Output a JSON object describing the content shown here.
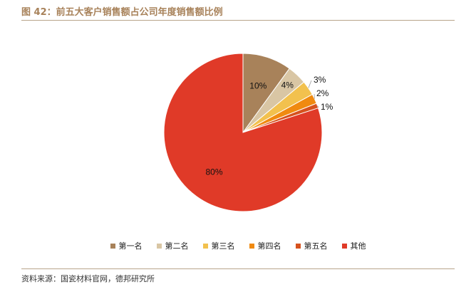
{
  "title": "图 42：前五大客户销售额占公司年度销售额比例",
  "source": "资料来源：国瓷材料官网，德邦研究所",
  "chart_data": {
    "type": "pie",
    "title": "",
    "slices": [
      {
        "label": "第一名",
        "value": 10,
        "display": "10%",
        "color": "#a8825a"
      },
      {
        "label": "第二名",
        "value": 4,
        "display": "4%",
        "color": "#d9c6a4"
      },
      {
        "label": "第三名",
        "value": 3,
        "display": "3%",
        "color": "#f2c14e"
      },
      {
        "label": "第四名",
        "value": 2,
        "display": "2%",
        "color": "#f08a10"
      },
      {
        "label": "第五名",
        "value": 1,
        "display": "1%",
        "color": "#d6521e"
      },
      {
        "label": "其他",
        "value": 80,
        "display": "80%",
        "color": "#e03a28"
      }
    ],
    "legend_position": "bottom"
  }
}
